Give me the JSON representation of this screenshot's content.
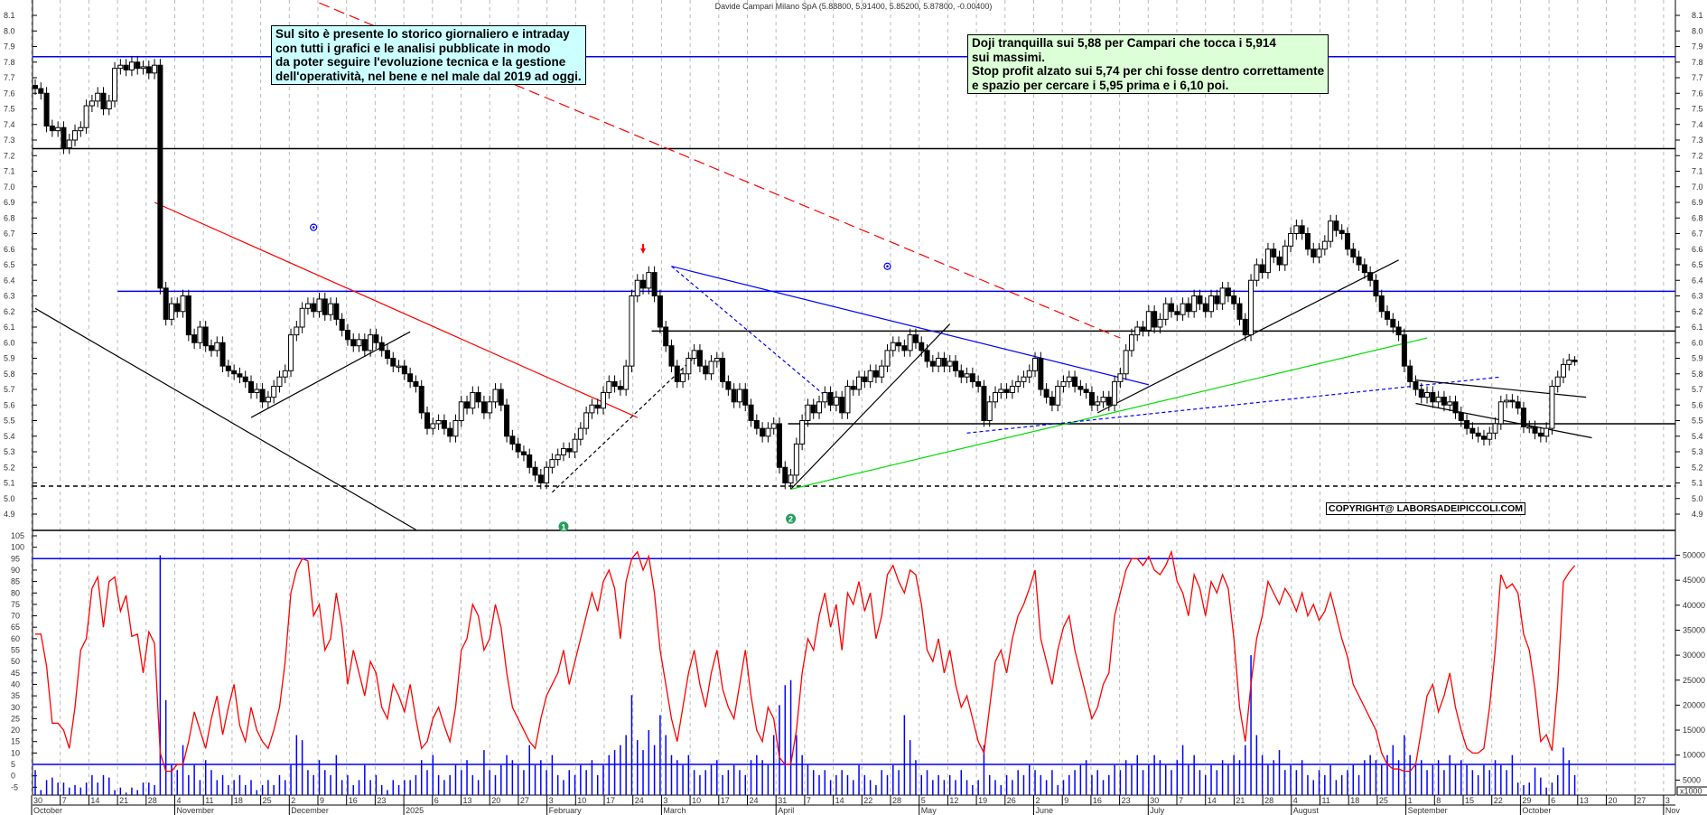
{
  "title": "Davide Campari Milano SpA (5.88800, 5.91400, 5.85200, 5.87800, -0.00400)",
  "notes": {
    "left": "Sul sito è presente lo storico giornaliero e intraday\ncon tutti i grafici e le analisi pubblicate in modo\nda poter seguire l'evoluzione tecnica e la gestione\ndell'operatività, nel bene e nel male dal 2019 ad oggi.",
    "right": "Doji tranquilla sui 5,88 per Campari che tocca i 5,914\nsui massimi.\nStop profit alzato sui 5,74 per chi fosse dentro correttamente\ne spazio per cercare i 5,95 prima e i 6,10 poi."
  },
  "copyright": "COPYRIGHT@ LABORSADEIPICCOLI.COM",
  "chart_data": {
    "type": "candlestick",
    "last_candle": {
      "open": 5.888,
      "high": 5.914,
      "low": 5.852,
      "close": 5.878,
      "change": -0.004
    },
    "price_axis": {
      "ylim": [
        4.9,
        8.1
      ],
      "step": 0.1
    },
    "oscillator_axis": {
      "ylim": [
        -5,
        105
      ],
      "step": 5
    },
    "volume_axis": {
      "ylim": [
        5000,
        50000
      ],
      "step": 5000,
      "unit_label": "x1000"
    },
    "x_ticks": [
      "30",
      "7",
      "14",
      "21",
      "28",
      "4",
      "11",
      "18",
      "25",
      "2",
      "9",
      "16",
      "23",
      "",
      "6",
      "13",
      "20",
      "27",
      "3",
      "10",
      "17",
      "24",
      "3",
      "10",
      "17",
      "24",
      "31",
      "7",
      "14",
      "22",
      "28",
      "5",
      "12",
      "19",
      "26",
      "2",
      "9",
      "16",
      "23",
      "30",
      "7",
      "14",
      "21",
      "28",
      "4",
      "11",
      "18",
      "25",
      "1",
      "8",
      "15",
      "22",
      "29",
      "6",
      "13",
      "20",
      "27",
      "3"
    ],
    "months": [
      "October",
      "November",
      "December",
      "2025",
      "February",
      "March",
      "April",
      "May",
      "June",
      "July",
      "August",
      "September",
      "October",
      "Nov"
    ],
    "colors": {
      "oscillator": "#ff0000",
      "volume": "#0000ff",
      "support": "#000000",
      "resistance_blue": "#0000ff",
      "trend_red": "#ff0000",
      "trend_green": "#00dd00",
      "grid": "#bbbbbb"
    },
    "close": [
      7.63,
      7.6,
      7.39,
      7.36,
      7.38,
      7.25,
      7.3,
      7.36,
      7.38,
      7.52,
      7.55,
      7.6,
      7.5,
      7.55,
      7.76,
      7.78,
      7.75,
      7.8,
      7.76,
      7.77,
      7.73,
      7.78,
      6.35,
      6.15,
      6.25,
      6.2,
      6.3,
      6.05,
      6.0,
      6.1,
      5.98,
      5.95,
      6.0,
      5.85,
      5.82,
      5.8,
      5.78,
      5.75,
      5.68,
      5.7,
      5.62,
      5.65,
      5.72,
      5.78,
      5.82,
      6.05,
      6.1,
      6.22,
      6.25,
      6.2,
      6.28,
      6.18,
      6.25,
      6.15,
      6.08,
      6.02,
      5.98,
      6.02,
      5.95,
      6.05,
      6.0,
      5.95,
      5.9,
      5.85,
      5.85,
      5.8,
      5.75,
      5.72,
      5.55,
      5.45,
      5.48,
      5.5,
      5.45,
      5.4,
      5.5,
      5.62,
      5.58,
      5.68,
      5.62,
      5.55,
      5.62,
      5.7,
      5.6,
      5.4,
      5.35,
      5.3,
      5.28,
      5.2,
      5.15,
      5.1,
      5.2,
      5.25,
      5.28,
      5.32,
      5.3,
      5.38,
      5.45,
      5.55,
      5.6,
      5.58,
      5.68,
      5.75,
      5.72,
      5.7,
      5.85,
      6.3,
      6.4,
      6.35,
      6.45,
      6.3,
      6.1,
      5.98,
      5.85,
      5.75,
      5.8,
      5.9,
      5.95,
      5.85,
      5.8,
      5.88,
      5.9,
      5.75,
      5.7,
      5.62,
      5.7,
      5.6,
      5.5,
      5.45,
      5.4,
      5.45,
      5.48,
      5.2,
      5.1,
      5.15,
      5.35,
      5.5,
      5.6,
      5.55,
      5.62,
      5.68,
      5.6,
      5.65,
      5.55,
      5.72,
      5.7,
      5.78,
      5.75,
      5.82,
      5.78,
      5.85,
      5.95,
      6.0,
      5.98,
      5.95,
      6.05,
      6.0,
      5.95,
      5.88,
      5.85,
      5.9,
      5.85,
      5.88,
      5.82,
      5.78,
      5.8,
      5.75,
      5.72,
      5.5,
      5.62,
      5.68,
      5.7,
      5.68,
      5.72,
      5.75,
      5.78,
      5.82,
      5.9,
      5.7,
      5.65,
      5.6,
      5.72,
      5.75,
      5.78,
      5.72,
      5.7,
      5.68,
      5.6,
      5.62,
      5.65,
      5.6,
      5.75,
      5.8,
      5.95,
      6.05,
      6.1,
      6.08,
      6.2,
      6.1,
      6.15,
      6.25,
      6.2,
      6.18,
      6.25,
      6.2,
      6.3,
      6.25,
      6.2,
      6.3,
      6.25,
      6.35,
      6.3,
      6.25,
      6.15,
      6.05,
      6.4,
      6.5,
      6.45,
      6.6,
      6.55,
      6.5,
      6.62,
      6.7,
      6.75,
      6.7,
      6.6,
      6.55,
      6.6,
      6.65,
      6.78,
      6.72,
      6.7,
      6.6,
      6.55,
      6.5,
      6.45,
      6.4,
      6.3,
      6.2,
      6.15,
      6.1,
      6.05,
      5.85,
      5.75,
      5.7,
      5.65,
      5.68,
      5.62,
      5.65,
      5.6,
      5.62,
      5.55,
      5.5,
      5.45,
      5.42,
      5.4,
      5.38,
      5.42,
      5.48,
      5.62,
      5.63,
      5.62,
      5.58,
      5.46,
      5.46,
      5.42,
      5.4,
      5.45,
      5.72,
      5.78,
      5.86,
      5.888,
      5.878
    ],
    "oscillator": [
      62,
      62,
      48,
      23,
      23,
      20,
      12,
      30,
      55,
      60,
      82,
      87,
      65,
      85,
      87,
      72,
      79,
      61,
      62,
      45,
      63,
      58,
      10,
      2,
      2,
      5,
      5,
      15,
      28,
      20,
      12,
      25,
      35,
      18,
      30,
      40,
      22,
      15,
      30,
      20,
      15,
      12,
      20,
      30,
      50,
      80,
      90,
      95,
      94,
      70,
      75,
      55,
      60,
      80,
      65,
      40,
      55,
      45,
      35,
      50,
      45,
      30,
      25,
      40,
      35,
      28,
      40,
      25,
      12,
      15,
      25,
      30,
      22,
      15,
      30,
      55,
      60,
      75,
      70,
      55,
      60,
      75,
      65,
      45,
      30,
      25,
      20,
      15,
      12,
      25,
      35,
      40,
      45,
      55,
      40,
      50,
      60,
      70,
      80,
      72,
      85,
      90,
      82,
      60,
      85,
      95,
      98,
      90,
      96,
      80,
      55,
      40,
      25,
      15,
      30,
      45,
      55,
      40,
      30,
      45,
      55,
      38,
      30,
      25,
      40,
      55,
      35,
      20,
      15,
      30,
      25,
      8,
      5,
      5,
      20,
      45,
      60,
      55,
      70,
      80,
      65,
      75,
      55,
      80,
      75,
      85,
      72,
      80,
      60,
      70,
      88,
      92,
      85,
      80,
      90,
      88,
      75,
      55,
      50,
      60,
      45,
      55,
      40,
      30,
      35,
      25,
      15,
      10,
      30,
      50,
      55,
      45,
      60,
      70,
      75,
      82,
      90,
      60,
      50,
      40,
      55,
      65,
      70,
      55,
      45,
      35,
      25,
      30,
      40,
      45,
      70,
      80,
      90,
      95,
      95,
      92,
      96,
      90,
      88,
      92,
      98,
      85,
      80,
      70,
      88,
      82,
      70,
      85,
      80,
      88,
      82,
      60,
      30,
      15,
      40,
      60,
      70,
      85,
      80,
      75,
      82,
      78,
      72,
      80,
      70,
      75,
      68,
      72,
      80,
      70,
      60,
      52,
      40,
      35,
      30,
      25,
      20,
      10,
      5,
      3,
      3,
      2,
      2,
      5,
      20,
      35,
      40,
      28,
      35,
      45,
      30,
      20,
      12,
      10,
      10,
      12,
      30,
      55,
      88,
      82,
      84,
      80,
      62,
      55,
      38,
      15,
      18,
      11,
      40,
      85,
      89,
      92
    ],
    "volume_thousands": [
      7,
      3,
      5,
      5.5,
      4.5,
      4.5,
      3.5,
      4,
      3.5,
      4.5,
      6,
      4.5,
      6,
      5.5,
      3,
      3.5,
      2.5,
      3.5,
      3,
      4.5,
      4.5,
      4,
      50,
      21,
      8,
      7,
      12,
      6,
      8,
      5,
      9,
      7,
      5,
      6,
      4,
      5,
      6,
      4,
      5,
      3,
      4,
      5,
      4,
      6,
      5,
      8,
      14,
      13,
      7,
      6,
      9,
      7,
      6,
      10,
      5,
      6,
      4,
      5,
      8,
      5,
      6,
      4,
      3,
      5,
      4,
      5,
      5,
      6,
      9,
      7,
      10,
      6,
      5,
      6,
      8,
      7,
      9,
      6,
      5,
      11,
      7,
      6,
      8,
      10,
      9,
      8,
      7,
      12,
      8,
      9,
      7,
      10,
      6,
      5,
      7,
      6,
      8,
      7,
      9,
      6,
      8,
      10,
      11,
      12,
      14,
      22,
      13,
      11,
      15,
      12,
      18,
      14,
      10,
      9,
      8,
      10,
      7,
      6,
      7,
      8,
      9,
      6,
      7,
      8,
      7,
      6,
      9,
      10,
      9,
      8,
      14,
      20,
      24,
      25,
      14,
      10,
      8,
      7,
      6,
      7,
      5,
      6,
      7,
      6,
      5,
      8,
      6,
      5,
      4,
      7,
      6,
      8,
      7,
      18,
      13,
      9,
      6,
      7,
      5,
      6,
      5,
      6,
      5,
      7,
      5,
      4,
      5,
      12,
      6,
      5,
      4,
      6,
      5,
      7,
      6,
      8,
      7,
      6,
      5,
      7,
      4,
      5,
      6,
      7,
      8,
      9,
      6,
      7,
      5,
      6,
      8,
      7,
      9,
      8,
      10,
      7,
      8,
      10,
      9,
      8,
      7,
      9,
      12,
      8,
      10,
      7,
      6,
      8,
      7,
      9,
      8,
      10,
      9,
      12,
      30,
      14,
      10,
      8,
      9,
      11,
      7,
      8,
      7,
      9,
      6,
      5,
      7,
      6,
      8,
      5,
      6,
      7,
      8,
      6,
      9,
      10,
      9,
      8,
      10,
      12,
      9,
      14,
      10,
      8,
      9,
      7,
      8,
      9,
      7,
      10,
      8,
      9,
      8,
      7,
      6,
      8,
      7,
      9,
      8,
      7,
      10,
      4.5,
      4,
      4.5,
      7.5,
      5.5,
      3.5,
      4.5,
      6,
      11.5,
      9,
      6
    ],
    "horizontal_levels": [
      {
        "price": 7.835,
        "color": "#0000ff",
        "from_bar": 0
      },
      {
        "price": 7.245,
        "color": "#000000",
        "from_bar": 0
      },
      {
        "price": 6.33,
        "color": "#0000ff",
        "from_bar": 15
      },
      {
        "price": 6.075,
        "color": "#000000",
        "from_bar": 109
      },
      {
        "price": 5.48,
        "color": "#000000",
        "from_bar": 133
      },
      {
        "price": 5.08,
        "color": "#000000",
        "from_bar": 0,
        "dashed": true
      }
    ],
    "oscillator_levels": [
      95,
      5
    ],
    "trendlines": [
      {
        "from": [
          0,
          6.22
        ],
        "to": [
          67,
          4.8
        ],
        "color": "#000000"
      },
      {
        "from": [
          21,
          6.9
        ],
        "to": [
          106,
          5.52
        ],
        "color": "#ff0000"
      },
      {
        "from": [
          50,
          8.18
        ],
        "to": [
          191,
          6.03
        ],
        "color": "#ff0000",
        "dashed": true
      },
      {
        "from": [
          38,
          5.52
        ],
        "to": [
          66,
          6.07
        ],
        "color": "#000000"
      },
      {
        "from": [
          91,
          5.04
        ],
        "to": [
          117,
          5.94
        ],
        "color": "#000000",
        "dashed": true
      },
      {
        "from": [
          112,
          6.49
        ],
        "to": [
          196,
          5.73
        ],
        "color": "#0000ff"
      },
      {
        "from": [
          112,
          6.49
        ],
        "to": [
          141,
          5.6
        ],
        "color": "#0000ff",
        "dashed": true
      },
      {
        "from": [
          133,
          5.06
        ],
        "to": [
          161,
          6.12
        ],
        "color": "#000000"
      },
      {
        "from": [
          133,
          5.06
        ],
        "to": [
          245,
          6.03
        ],
        "color": "#00dd00"
      },
      {
        "from": [
          187,
          5.55
        ],
        "to": [
          240,
          6.53
        ],
        "color": "#000000"
      },
      {
        "from": [
          164,
          5.42
        ],
        "to": [
          258,
          5.78
        ],
        "color": "#0000ff",
        "dashed": true
      },
      {
        "from": [
          243,
          5.76
        ],
        "to": [
          273,
          5.65
        ],
        "color": "#000000"
      },
      {
        "from": [
          243,
          5.61
        ],
        "to": [
          274,
          5.39
        ],
        "color": "#000000"
      }
    ],
    "markers": [
      {
        "type": "blue-dot",
        "bar": 49,
        "price": 6.74
      },
      {
        "type": "blue-dot",
        "bar": 150,
        "price": 6.49
      },
      {
        "type": "red-arrow-down",
        "bar": 107,
        "price": 6.57
      },
      {
        "type": "green-number",
        "bar": 93,
        "price": 4.82,
        "label": "1"
      },
      {
        "type": "green-number",
        "bar": 133,
        "price": 4.87,
        "label": "2"
      }
    ]
  }
}
